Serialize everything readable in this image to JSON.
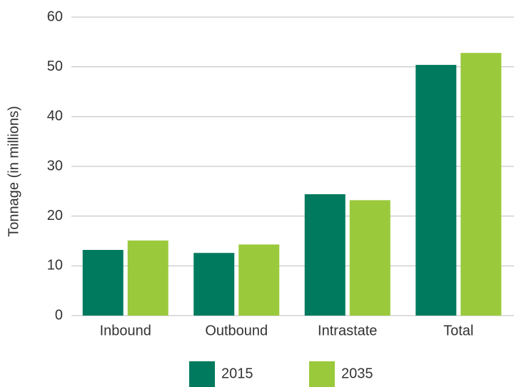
{
  "chart_data": {
    "type": "bar",
    "y_label": "Tonnage (in millions)",
    "categories": [
      "Inbound",
      "Outbound",
      "Intrastate",
      "Total"
    ],
    "series": [
      {
        "name": "2015",
        "color": "#007a5e",
        "values": [
          13.2,
          12.6,
          24.4,
          50.4
        ]
      },
      {
        "name": "2035",
        "color": "#9bc93c",
        "values": [
          15.1,
          14.3,
          23.2,
          52.8
        ]
      }
    ],
    "ylim": [
      0,
      60
    ],
    "yticks": [
      0,
      10,
      20,
      30,
      40,
      50,
      60
    ],
    "grid": true
  }
}
